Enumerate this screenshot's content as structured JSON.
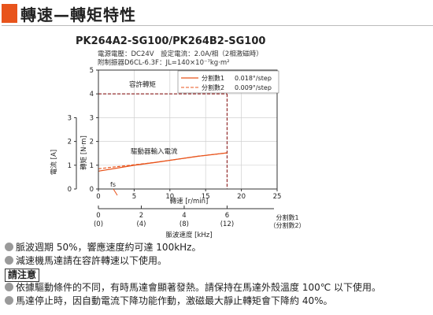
{
  "header": {
    "title": "轉速—轉矩特性"
  },
  "chart_data": {
    "type": "line",
    "title": "PK264A2-SG100/PK264B2-SG100",
    "conditions": [
      "電源電壓：DC24V　設定電流：2.0A/相（2相激磁時）",
      "附制振器D6CL-6.3F：JL=140×10⁻⁷kg·m²"
    ],
    "xlabel": "轉速 [r/min]",
    "xlim": [
      0,
      25
    ],
    "xticks": [
      "0",
      "5",
      "10",
      "15",
      "20",
      "25"
    ],
    "y_torque_label": "轉矩 [N·m]",
    "y_torque_lim": [
      0,
      5
    ],
    "y_torque_ticks": [
      "0",
      "1",
      "2",
      "3",
      "4",
      "5"
    ],
    "y_current_label": "電流 [A]",
    "y_current_lim": [
      0,
      3
    ],
    "y_current_ticks": [
      "0",
      "1",
      "2",
      "3"
    ],
    "annotations": {
      "allowable_torque": "容許轉矩",
      "driver_current": "驅動器輸入電流",
      "fs": "fs"
    },
    "allowable_torque": {
      "value": 4,
      "x_end": 18
    },
    "series": [
      {
        "name": "分割數1",
        "value": "0.018°/step",
        "color": "#e8541c",
        "style": "solid",
        "axis": "current",
        "x": [
          0,
          2,
          5,
          8,
          11,
          14,
          16,
          18
        ],
        "y": [
          0.75,
          0.85,
          1.0,
          1.12,
          1.25,
          1.38,
          1.45,
          1.52
        ]
      },
      {
        "name": "分割數2",
        "value": "0.009°/step",
        "color": "#e8541c",
        "style": "dashed",
        "axis": "current",
        "x": [
          0,
          2,
          5,
          8,
          11,
          14,
          16,
          18
        ],
        "y": [
          0.85,
          0.92,
          1.02,
          1.12,
          1.25,
          1.38,
          1.45,
          1.52
        ]
      }
    ],
    "pulse_axis": {
      "label": "脈波速度 [kHz]",
      "ticks_top": [
        "0",
        "2",
        "4",
        "6"
      ],
      "ticks_bottom": [
        "(0)",
        "(4)",
        "(8)",
        "(12)"
      ],
      "legend_1": "分割數1",
      "legend_2": "（分割數2）"
    }
  },
  "notes": {
    "note1": "脈波週期 50%，響應速度約可達 100kHz。",
    "note2": "減速機馬達請在容許轉速以下使用。",
    "caution_title": "請注意",
    "caution1": "依據驅動條件的不同，有時馬達會顯著發熱。請保持在馬達外殼溫度 100℃ 以下使用。",
    "caution2": "馬達停止時，因自動電流下降功能作動，激磁最大靜止轉矩會下降約 40%。"
  }
}
